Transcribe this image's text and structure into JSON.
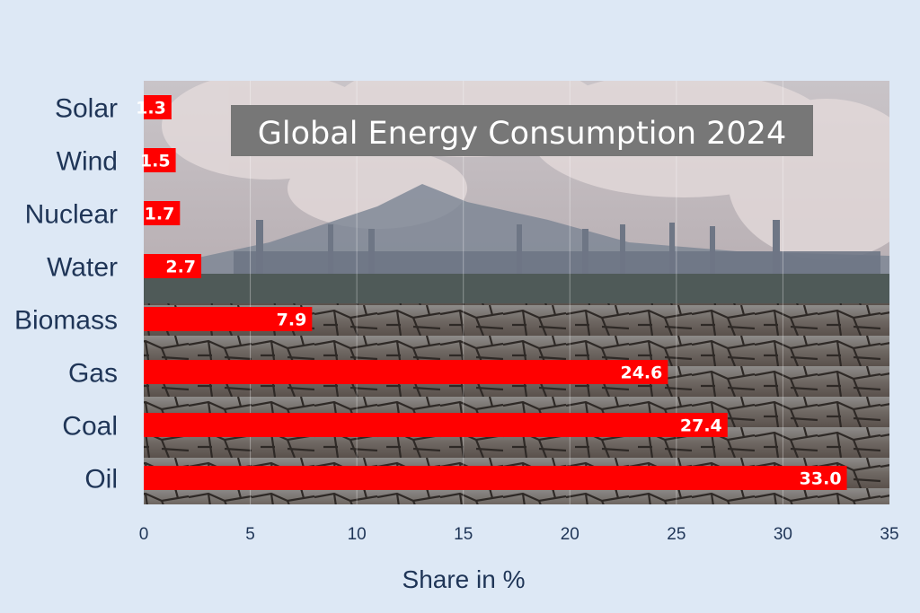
{
  "chart_data": {
    "type": "bar",
    "orientation": "horizontal",
    "title": "Global Energy Consumption 2024",
    "xlabel": "Share in %",
    "ylabel": "",
    "categories": [
      "Solar",
      "Wind",
      "Nuclear",
      "Water",
      "Biomass",
      "Gas",
      "Coal",
      "Oil"
    ],
    "values": [
      1.3,
      1.5,
      1.7,
      2.7,
      7.9,
      24.6,
      27.4,
      33.0
    ],
    "value_labels": [
      "1.3",
      "1.5",
      "1.7",
      "2.7",
      "7.9",
      "24.6",
      "27.4",
      "33.0"
    ],
    "xlim": [
      0,
      35
    ],
    "xticks": [
      0,
      5,
      10,
      15,
      20,
      25,
      30,
      35
    ],
    "grid": "vertical",
    "legend": "none",
    "background_image": "industrial smokestacks over cracked dry earth",
    "colors": {
      "bar": "#ff0000",
      "page_background": "#dde8f5",
      "text": "#1f3557",
      "title_box": "#777777"
    }
  }
}
